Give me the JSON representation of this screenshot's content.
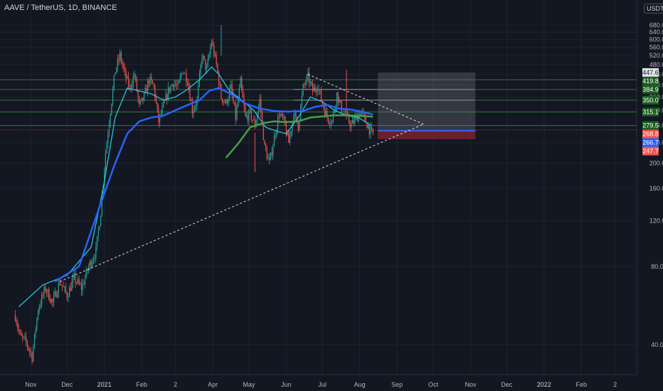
{
  "header": {
    "title": "AAVE / TetherUS, 1D, BINANCE",
    "currency": "USDT"
  },
  "colors": {
    "background": "#131722",
    "grid": "#1e222d",
    "axis_text": "#b2b5be",
    "bull_candle": "#26a69a",
    "bear_candle": "#ef5350",
    "ma_fast": "#26c6da",
    "ma_mid": "#2962ff",
    "ma_slow": "#43a047",
    "levels": "#388e3c",
    "trend": "#ffffff",
    "target_box": "#787b86",
    "stop_box": "#b22833",
    "entry_line": "#2962ff"
  },
  "chart_data": {
    "type": "candlestick",
    "symbol": "AAVE / TetherUS",
    "interval": "1D",
    "exchange": "BINANCE",
    "x_labels": [
      "Nov",
      "Dec",
      "2021",
      "Feb",
      "2",
      "Apr",
      "May",
      "Jun",
      "Jul",
      "Aug",
      "Sep",
      "Oct",
      "Nov",
      "Dec",
      "2022",
      "Feb",
      "2"
    ],
    "x_label_days": [
      0,
      30,
      61,
      92,
      120,
      151,
      181,
      212,
      242,
      273,
      304,
      334,
      365,
      395,
      426,
      457,
      485
    ],
    "x_range_days": [
      -15,
      497
    ],
    "y_axis": {
      "scale": "log",
      "ticks": [
        "40.0",
        "80.0",
        "120.0",
        "160.0",
        "200.0",
        "240.0",
        "280.0",
        "320.0",
        "360.0",
        "400.0",
        "440.0",
        "480.0",
        "520.0",
        "560.0",
        "600.0",
        "640.0",
        "680.0"
      ],
      "range": [
        35,
        700
      ]
    },
    "price_path": [
      [
        -13,
        52
      ],
      [
        -9,
        43
      ],
      [
        -4,
        41
      ],
      [
        1,
        36
      ],
      [
        6,
        55
      ],
      [
        12,
        66
      ],
      [
        18,
        58
      ],
      [
        24,
        70
      ],
      [
        30,
        62
      ],
      [
        36,
        72
      ],
      [
        42,
        66
      ],
      [
        48,
        80
      ],
      [
        54,
        92
      ],
      [
        58,
        130
      ],
      [
        62,
        220
      ],
      [
        66,
        320
      ],
      [
        70,
        455
      ],
      [
        74,
        520
      ],
      [
        78,
        440
      ],
      [
        82,
        390
      ],
      [
        86,
        440
      ],
      [
        90,
        330
      ],
      [
        94,
        360
      ],
      [
        98,
        420
      ],
      [
        102,
        395
      ],
      [
        106,
        290
      ],
      [
        110,
        330
      ],
      [
        114,
        380
      ],
      [
        118,
        410
      ],
      [
        122,
        390
      ],
      [
        126,
        460
      ],
      [
        130,
        420
      ],
      [
        134,
        320
      ],
      [
        138,
        350
      ],
      [
        142,
        520
      ],
      [
        146,
        460
      ],
      [
        150,
        590
      ],
      [
        154,
        480
      ],
      [
        158,
        360
      ],
      [
        162,
        340
      ],
      [
        166,
        390
      ],
      [
        170,
        300
      ],
      [
        174,
        410
      ],
      [
        178,
        300
      ],
      [
        182,
        310
      ],
      [
        186,
        280
      ],
      [
        190,
        350
      ],
      [
        194,
        230
      ],
      [
        198,
        200
      ],
      [
        202,
        250
      ],
      [
        206,
        310
      ],
      [
        210,
        290
      ],
      [
        214,
        240
      ],
      [
        218,
        310
      ],
      [
        222,
        280
      ],
      [
        226,
        390
      ],
      [
        230,
        430
      ],
      [
        234,
        380
      ],
      [
        238,
        400
      ],
      [
        242,
        340
      ],
      [
        246,
        300
      ],
      [
        250,
        290
      ],
      [
        254,
        370
      ],
      [
        258,
        320
      ],
      [
        262,
        300
      ],
      [
        266,
        280
      ],
      [
        270,
        300
      ],
      [
        274,
        315
      ],
      [
        278,
        290
      ],
      [
        282,
        265
      ],
      [
        284,
        258
      ]
    ],
    "series": [
      {
        "name": "",
        "values": [
          [
            -10,
            56
          ],
          [
            10,
            68
          ],
          [
            30,
            74
          ],
          [
            50,
            95
          ],
          [
            60,
            160
          ],
          [
            70,
            300
          ],
          [
            80,
            390
          ],
          [
            90,
            380
          ],
          [
            100,
            370
          ],
          [
            110,
            350
          ],
          [
            120,
            360
          ],
          [
            130,
            385
          ],
          [
            140,
            420
          ],
          [
            150,
            470
          ],
          [
            156,
            440
          ],
          [
            165,
            380
          ],
          [
            175,
            350
          ],
          [
            185,
            320
          ],
          [
            195,
            275
          ],
          [
            205,
            265
          ],
          [
            212,
            260
          ],
          [
            222,
            300
          ],
          [
            232,
            360
          ],
          [
            242,
            345
          ],
          [
            252,
            320
          ],
          [
            262,
            305
          ],
          [
            272,
            300
          ],
          [
            282,
            280
          ]
        ]
      },
      {
        "name": "",
        "values": [
          [
            20,
            70
          ],
          [
            40,
            80
          ],
          [
            58,
            140
          ],
          [
            70,
            200
          ],
          [
            80,
            260
          ],
          [
            90,
            290
          ],
          [
            100,
            300
          ],
          [
            110,
            305
          ],
          [
            120,
            320
          ],
          [
            130,
            335
          ],
          [
            140,
            350
          ],
          [
            148,
            380
          ],
          [
            156,
            390
          ],
          [
            166,
            370
          ],
          [
            178,
            340
          ],
          [
            190,
            325
          ],
          [
            202,
            318
          ],
          [
            214,
            316
          ],
          [
            226,
            318
          ],
          [
            236,
            330
          ],
          [
            246,
            335
          ],
          [
            256,
            325
          ],
          [
            266,
            322
          ],
          [
            276,
            315
          ],
          [
            284,
            308
          ]
        ]
      },
      {
        "name": "",
        "values": [
          [
            162,
            210
          ],
          [
            172,
            238
          ],
          [
            182,
            275
          ],
          [
            192,
            285
          ],
          [
            202,
            290
          ],
          [
            212,
            288
          ],
          [
            222,
            290
          ],
          [
            232,
            300
          ],
          [
            242,
            303
          ],
          [
            252,
            306
          ],
          [
            262,
            306
          ],
          [
            272,
            305
          ],
          [
            284,
            302
          ]
        ]
      }
    ],
    "horizontal_levels": [
      "419.8",
      "384.9",
      "350.0",
      "315.1",
      "279.5"
    ],
    "level_values": [
      419.8,
      384.9,
      350.0,
      315.1,
      279.5
    ],
    "grey_level_segments": [
      [
        368,
        384.9
      ],
      [
        350.0
      ]
    ],
    "trend_lines": [
      {
        "from": [
          24,
          70
        ],
        "to": [
          326,
          283
        ]
      },
      {
        "from": [
          230,
          440
        ],
        "to": [
          326,
          283
        ]
      }
    ],
    "position_tool": {
      "start_day": 288,
      "end_day": 369,
      "target": 447.6,
      "entry": 266.7,
      "stop": 247.7
    },
    "price_labels": [
      {
        "text": "447.6",
        "value": 447.6,
        "color": "#e0e3eb",
        "text_color": "#131722"
      },
      {
        "text": "419.8",
        "value": 419.8,
        "color": "#1b5e20",
        "text_color": "#ffffff"
      },
      {
        "text": "384.9",
        "value": 384.9,
        "color": "#1b5e20",
        "text_color": "#ffffff"
      },
      {
        "text": "350.0",
        "value": 350.0,
        "color": "#1b5e20",
        "text_color": "#ffffff"
      },
      {
        "text": "315.1",
        "value": 315.1,
        "color": "#1b5e20",
        "text_color": "#ffffff"
      },
      {
        "text": "279.5",
        "value": 279.5,
        "color": "#1b5e20",
        "text_color": "#ffffff"
      },
      {
        "text": "268.8",
        "value": 268.8,
        "color": "#ef5350",
        "text_color": "#ffffff"
      },
      {
        "text": "266.7",
        "value": 266.7,
        "color": "#2962ff",
        "text_color": "#ffffff"
      },
      {
        "text": "247.7",
        "value": 247.7,
        "color": "#ef5350",
        "text_color": "#ffffff"
      }
    ]
  }
}
